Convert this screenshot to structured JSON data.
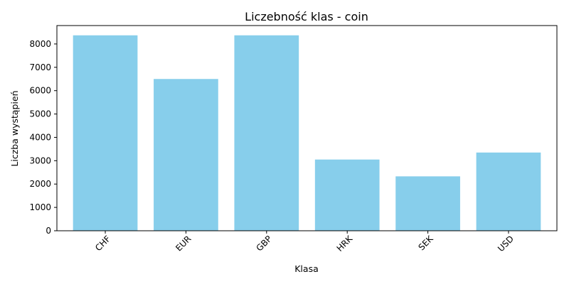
{
  "chart_data": {
    "type": "bar",
    "title": "Liczebność klas - coin",
    "xlabel": "Klasa",
    "ylabel": "Liczba wystąpień",
    "categories": [
      "CHF",
      "EUR",
      "GBP",
      "HRK",
      "SEK",
      "USD"
    ],
    "values": [
      8370,
      6500,
      8370,
      3050,
      2330,
      3350
    ],
    "ylim": [
      0,
      8788
    ],
    "yticks": [
      0,
      1000,
      2000,
      3000,
      4000,
      5000,
      6000,
      7000,
      8000
    ],
    "bar_color": "#87ceeb",
    "grid": false,
    "legend": "none"
  }
}
